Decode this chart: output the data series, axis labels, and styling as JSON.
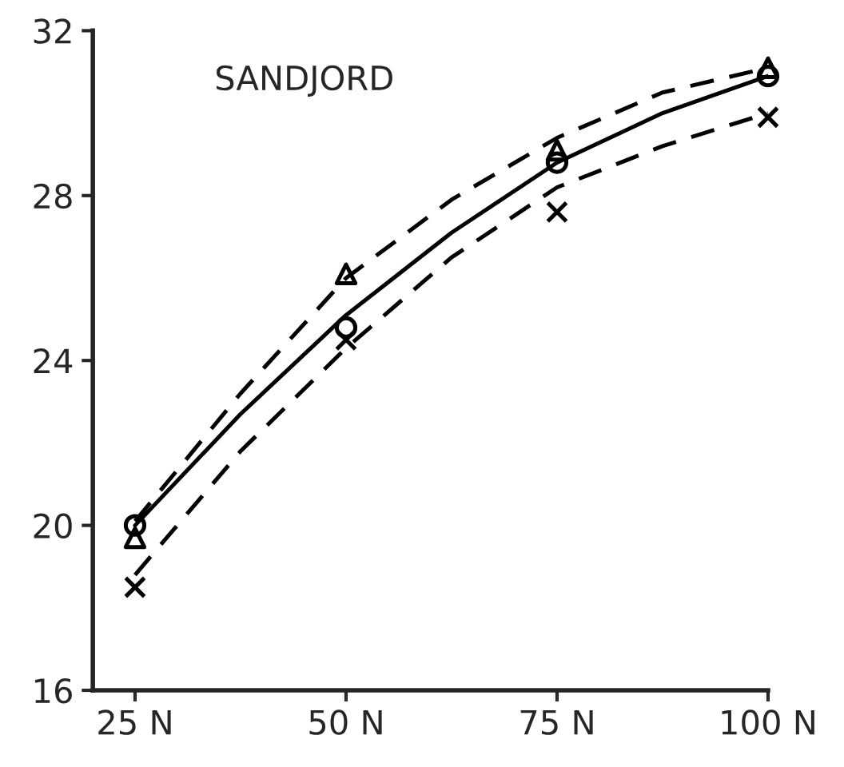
{
  "chart_data": {
    "type": "line",
    "title": "SANDJORD",
    "x": [
      25,
      50,
      75,
      100
    ],
    "xlim": [
      20,
      100
    ],
    "xticks": [
      {
        "value": 25,
        "label": "25 N"
      },
      {
        "value": 50,
        "label": "50 N"
      },
      {
        "value": 75,
        "label": "75 N"
      },
      {
        "value": 100,
        "label": "100 N"
      }
    ],
    "ylim": [
      16,
      32
    ],
    "yticks": [
      16,
      20,
      24,
      28,
      32
    ],
    "grid": false,
    "legend": false,
    "series": [
      {
        "type": "scatter",
        "color": "#000000",
        "marker": "circle",
        "values": [
          20.0,
          24.8,
          28.8,
          30.9
        ]
      },
      {
        "type": "scatter",
        "color": "#000000",
        "marker": "triangle",
        "values": [
          19.7,
          26.1,
          29.1,
          31.1
        ]
      },
      {
        "type": "scatter",
        "color": "#000000",
        "marker": "cross",
        "values": [
          18.5,
          24.5,
          27.6,
          29.9
        ]
      },
      {
        "color": "#000000",
        "line_style": "solid",
        "marker": "none",
        "x": [
          25,
          37.5,
          50,
          62.5,
          75,
          87.5,
          100
        ],
        "values": [
          20.0,
          22.7,
          25.1,
          27.1,
          28.8,
          30.0,
          30.9
        ]
      },
      {
        "color": "#000000",
        "line_style": "dashed",
        "marker": "none",
        "x": [
          25,
          37.5,
          50,
          62.5,
          75,
          87.5,
          100
        ],
        "values": [
          20.1,
          23.2,
          26.0,
          27.9,
          29.4,
          30.5,
          31.1
        ]
      },
      {
        "color": "#000000",
        "line_style": "dashed",
        "marker": "none",
        "x": [
          25,
          37.5,
          50,
          62.5,
          75,
          87.5,
          100
        ],
        "values": [
          18.8,
          21.8,
          24.3,
          26.5,
          28.2,
          29.2,
          30.0
        ]
      }
    ]
  }
}
